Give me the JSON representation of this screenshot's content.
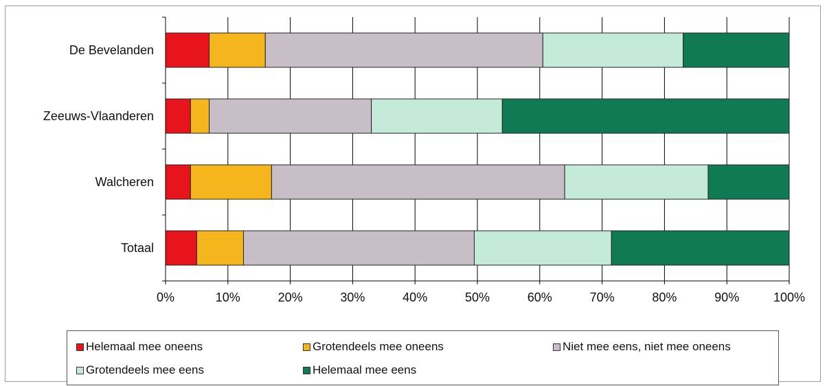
{
  "chart_data": {
    "type": "bar",
    "orientation": "horizontal",
    "stacked": true,
    "normalized": true,
    "categories": [
      "De Bevelanden",
      "Zeeuws-Vlaanderen",
      "Walcheren",
      "Totaal"
    ],
    "series": [
      {
        "name": "Helemaal mee oneens",
        "color": "#e8141c",
        "values": [
          7,
          4,
          4,
          5
        ]
      },
      {
        "name": "Grotendeels mee oneens",
        "color": "#f5b51c",
        "values": [
          9,
          3,
          13,
          7.5
        ]
      },
      {
        "name": "Niet mee eens, niet mee oneens",
        "color": "#c8bec8",
        "values": [
          44.5,
          26,
          47,
          37
        ]
      },
      {
        "name": "Grotendeels mee eens",
        "color": "#c4ead8",
        "values": [
          22.5,
          21,
          23,
          22
        ]
      },
      {
        "name": "Helemaal mee eens",
        "color": "#107a54",
        "values": [
          17,
          46,
          13,
          28.5
        ]
      }
    ],
    "xlim": [
      0,
      100
    ],
    "xticks": [
      "0%",
      "10%",
      "20%",
      "30%",
      "40%",
      "50%",
      "60%",
      "70%",
      "80%",
      "90%",
      "100%"
    ],
    "grid": "vertical",
    "legend_position": "bottom",
    "title": "",
    "xlabel": "",
    "ylabel": ""
  }
}
